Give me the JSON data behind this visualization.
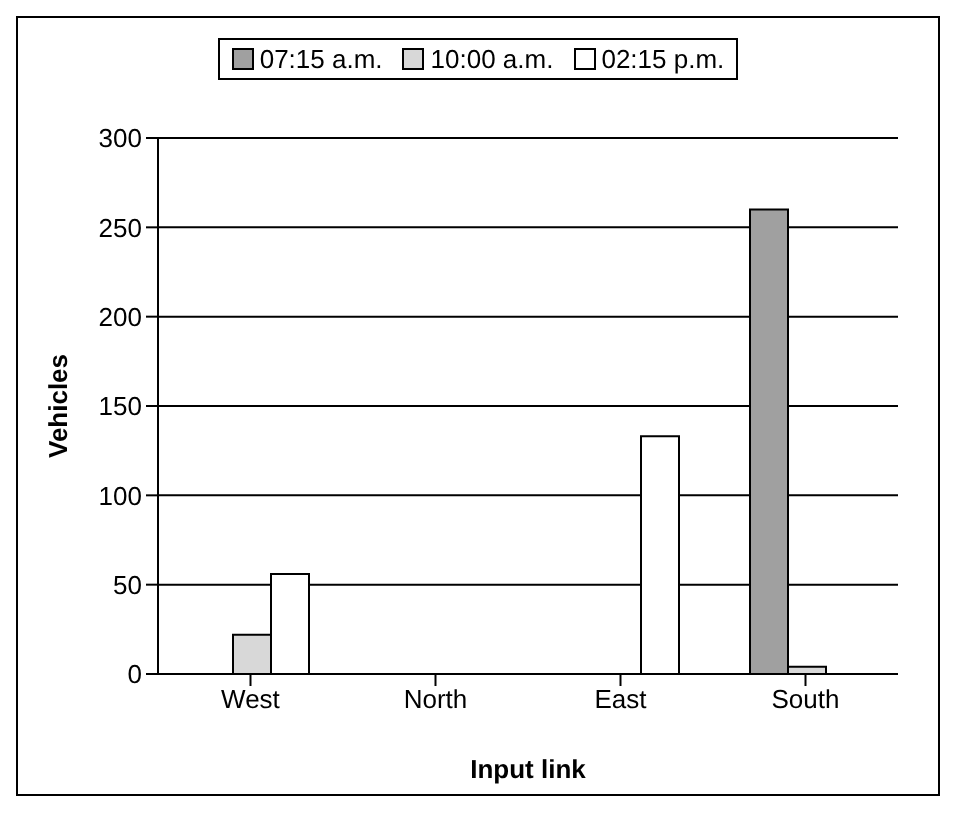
{
  "chart_data": {
    "type": "bar",
    "xlabel": "Input link",
    "ylabel": "Vehicles",
    "categories": [
      "West",
      "North",
      "East",
      "South"
    ],
    "series": [
      {
        "name": "07:15 a.m.",
        "color": "#a0a0a0",
        "values": [
          0,
          0,
          0,
          260
        ]
      },
      {
        "name": "10:00 a.m.",
        "color": "#d8d8d8",
        "values": [
          22,
          0,
          0,
          4
        ]
      },
      {
        "name": "02:15 p.m.",
        "color": "#ffffff",
        "values": [
          56,
          0,
          133,
          0
        ]
      }
    ],
    "ylim": [
      0,
      300
    ],
    "yticks": [
      0,
      50,
      100,
      150,
      200,
      250,
      300
    ],
    "grid": "y",
    "legend": "top"
  }
}
